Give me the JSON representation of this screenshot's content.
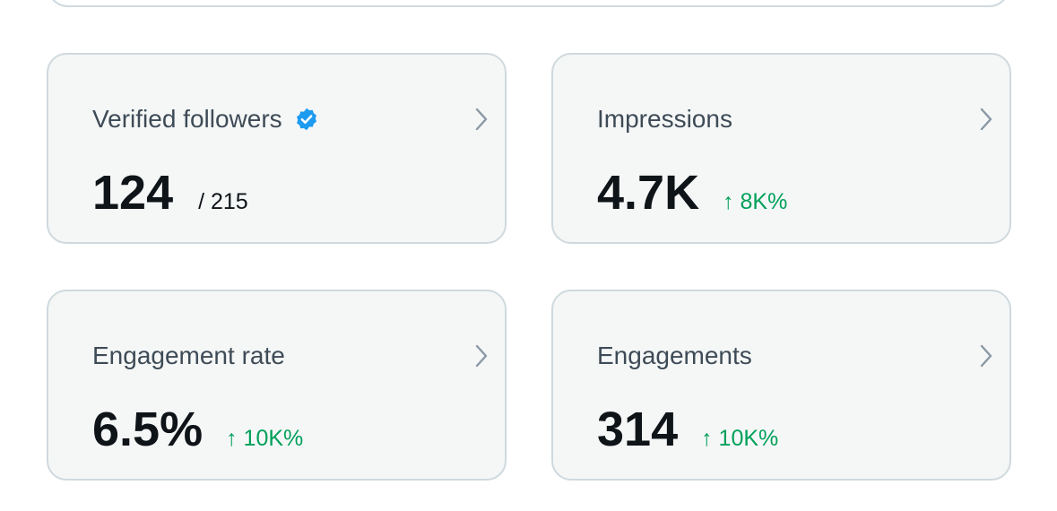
{
  "cards": [
    {
      "title": "Verified followers",
      "verified_badge": true,
      "value": 124,
      "total": "/ 215"
    },
    {
      "title": "Impressions",
      "value": "4.7K",
      "change": "↑ 8K%"
    },
    {
      "title": "Engagement rate",
      "value": "6.5%",
      "change": "↑ 10K%"
    },
    {
      "title": "Engagements",
      "value": 314,
      "change": "↑ 10K%"
    }
  ]
}
